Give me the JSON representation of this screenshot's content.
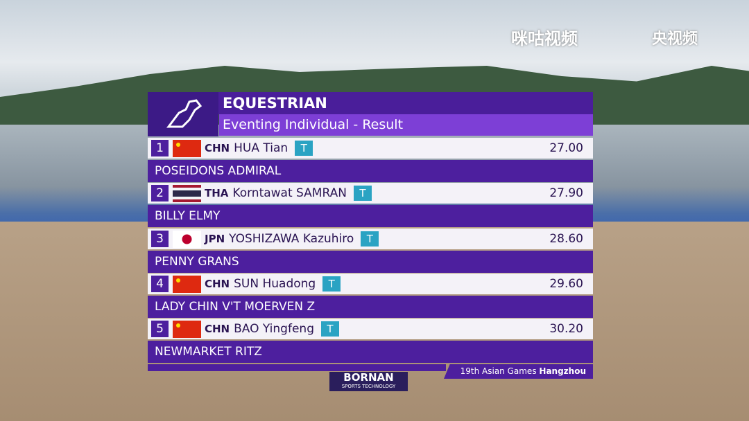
{
  "watermarks": [
    "咪咕视频",
    "央视频"
  ],
  "header": {
    "title": "EQUESTRIAN",
    "subtitle": "Eventing Individual - Result"
  },
  "results": [
    {
      "rank": 1,
      "noc": "CHN",
      "name": "HUA Tian",
      "badge": "T",
      "score": "27.00",
      "horse": "POSEIDONS ADMIRAL"
    },
    {
      "rank": 2,
      "noc": "THA",
      "name": "Korntawat SAMRAN",
      "badge": "T",
      "score": "27.90",
      "horse": "BILLY ELMY"
    },
    {
      "rank": 3,
      "noc": "JPN",
      "name": "YOSHIZAWA Kazuhiro",
      "badge": "T",
      "score": "28.60",
      "horse": "PENNY GRANS"
    },
    {
      "rank": 4,
      "noc": "CHN",
      "name": "SUN Huadong",
      "badge": "T",
      "score": "29.60",
      "horse": "LADY CHIN V'T MOERVEN Z"
    },
    {
      "rank": 5,
      "noc": "CHN",
      "name": "BAO Yingfeng",
      "badge": "T",
      "score": "30.20",
      "horse": "NEWMARKET RITZ"
    }
  ],
  "footer": {
    "event": "19th Asian Games",
    "city": "Hangzhou"
  },
  "sponsor": {
    "name": "BORNAN",
    "tagline": "SPORTS TECHNOLOGY"
  }
}
